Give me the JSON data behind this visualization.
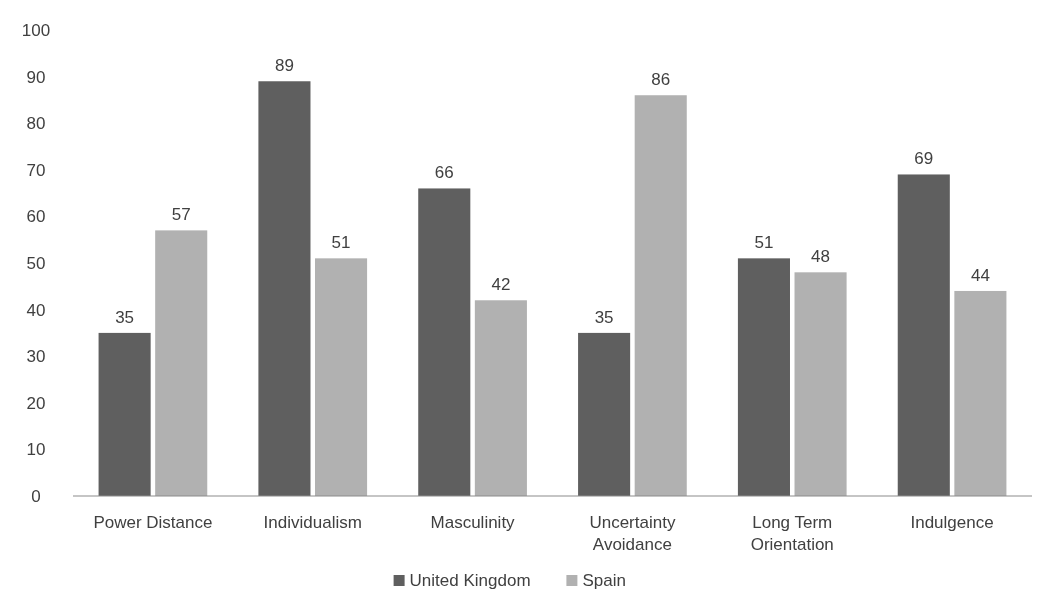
{
  "chart_data": {
    "type": "bar",
    "categories": [
      "Power Distance",
      "Individualism",
      "Masculinity",
      "Uncertainty Avoidance",
      "Long Term Orientation",
      "Indulgence"
    ],
    "series": [
      {
        "name": "United Kingdom",
        "color": "#5f5f5f",
        "values": [
          35,
          89,
          66,
          35,
          51,
          69
        ]
      },
      {
        "name": "Spain",
        "color": "#b1b1b1",
        "values": [
          57,
          51,
          42,
          86,
          48,
          44
        ]
      }
    ],
    "ylim": [
      0,
      100
    ],
    "yticks": [
      0,
      10,
      20,
      30,
      40,
      50,
      60,
      70,
      80,
      90,
      100
    ],
    "grid": false,
    "legend": "bottom",
    "data_labels": true
  }
}
